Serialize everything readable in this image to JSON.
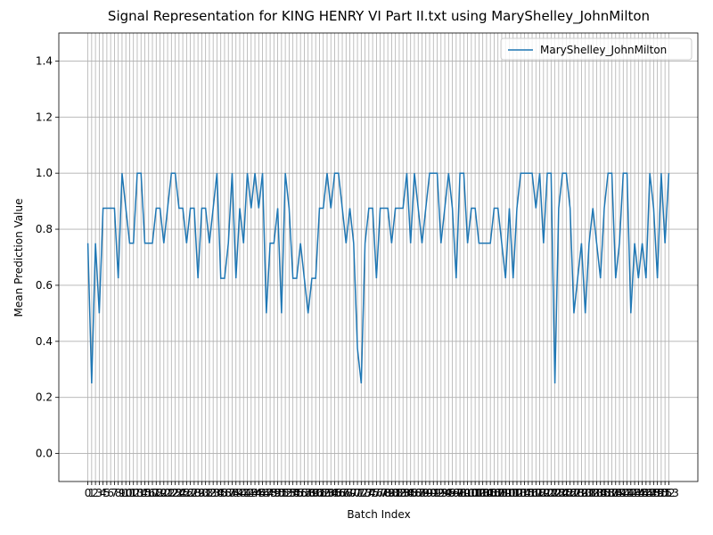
{
  "chart_data": {
    "type": "line",
    "title": "Signal Representation for KING HENRY VI Part II.txt using MaryShelley_JohnMilton",
    "xlabel": "Batch Index",
    "ylabel": "Mean Prediction Value",
    "x": [
      0,
      1,
      2,
      3,
      4,
      5,
      6,
      7,
      8,
      9,
      10,
      11,
      12,
      13,
      14,
      15,
      16,
      17,
      18,
      19,
      20,
      21,
      22,
      23,
      24,
      25,
      26,
      27,
      28,
      29,
      30,
      31,
      32,
      33,
      34,
      35,
      36,
      37,
      38,
      39,
      40,
      41,
      42,
      43,
      44,
      45,
      46,
      47,
      48,
      49,
      50,
      51,
      52,
      53,
      54,
      55,
      56,
      57,
      58,
      59,
      60,
      61,
      62,
      63,
      64,
      65,
      66,
      67,
      68,
      69,
      70,
      71,
      72,
      73,
      74,
      75,
      76,
      77,
      78,
      79,
      80,
      81,
      82,
      83,
      84,
      85,
      86,
      87,
      88,
      89,
      90,
      91,
      92,
      93,
      94,
      95,
      96,
      97,
      98,
      99,
      100,
      101,
      102,
      103,
      104,
      105,
      106,
      107,
      108,
      109,
      110,
      111,
      112,
      113,
      114,
      115,
      116,
      117,
      118,
      119,
      120,
      121,
      122,
      123,
      124,
      125,
      126,
      127,
      128,
      129,
      130,
      131,
      132,
      133,
      134,
      135,
      136,
      137,
      138,
      139,
      140,
      141,
      142,
      143,
      144,
      145,
      146,
      147,
      148,
      149,
      150,
      151,
      152,
      153
    ],
    "series": [
      {
        "name": "MaryShelley_JohnMilton",
        "color": "#1f77b4",
        "values": [
          0.75,
          0.25,
          0.75,
          0.5,
          0.875,
          0.875,
          0.875,
          0.875,
          0.625,
          1,
          0.875,
          0.75,
          0.75,
          1,
          1,
          0.75,
          0.75,
          0.75,
          0.875,
          0.875,
          0.75,
          0.875,
          1,
          1,
          0.875,
          0.875,
          0.75,
          0.875,
          0.875,
          0.625,
          0.875,
          0.875,
          0.75,
          0.875,
          1,
          0.625,
          0.625,
          0.75,
          1,
          0.625,
          0.875,
          0.75,
          1,
          0.875,
          1,
          0.875,
          1,
          0.5,
          0.75,
          0.75,
          0.875,
          0.5,
          1,
          0.875,
          0.625,
          0.625,
          0.75,
          0.625,
          0.5,
          0.625,
          0.625,
          0.875,
          0.875,
          1,
          0.875,
          1,
          1,
          0.875,
          0.75,
          0.875,
          0.75,
          0.375,
          0.25,
          0.75,
          0.875,
          0.875,
          0.625,
          0.875,
          0.875,
          0.875,
          0.75,
          0.875,
          0.875,
          0.875,
          1,
          0.75,
          1,
          0.875,
          0.75,
          0.875,
          1,
          1,
          1,
          0.75,
          0.875,
          1,
          0.875,
          0.625,
          1,
          1,
          0.75,
          0.875,
          0.875,
          0.75,
          0.75,
          0.75,
          0.75,
          0.875,
          0.875,
          0.75,
          0.625,
          0.875,
          0.625,
          0.875,
          1,
          1,
          1,
          1,
          0.875,
          1,
          0.75,
          1,
          1,
          0.25,
          0.875,
          1,
          1,
          0.875,
          0.5,
          0.625,
          0.75,
          0.5,
          0.75,
          0.875,
          0.75,
          0.625,
          0.875,
          1,
          1,
          0.625,
          0.75,
          1,
          1,
          0.5,
          0.75,
          0.625,
          0.75,
          0.625,
          1,
          0.875,
          0.625,
          1,
          0.75,
          1
        ]
      }
    ],
    "xlim": [
      -7.65,
      160.65
    ],
    "xticks": [
      0,
      1,
      2,
      3,
      4,
      5,
      6,
      7,
      8,
      9,
      10,
      11,
      12,
      13,
      14,
      15,
      16,
      17,
      18,
      19,
      20,
      21,
      22,
      23,
      24,
      25,
      26,
      27,
      28,
      29,
      30,
      31,
      32,
      33,
      34,
      35,
      36,
      37,
      38,
      39,
      40,
      41,
      42,
      43,
      44,
      45,
      46,
      47,
      48,
      49,
      50,
      51,
      52,
      53,
      54,
      55,
      56,
      57,
      58,
      59,
      60,
      61,
      62,
      63,
      64,
      65,
      66,
      67,
      68,
      69,
      70,
      71,
      72,
      73,
      74,
      75,
      76,
      77,
      78,
      79,
      80,
      81,
      82,
      83,
      84,
      85,
      86,
      87,
      88,
      89,
      90,
      91,
      92,
      93,
      94,
      95,
      96,
      97,
      98,
      99,
      100,
      101,
      102,
      103,
      104,
      105,
      106,
      107,
      108,
      109,
      110,
      111,
      112,
      113,
      114,
      115,
      116,
      117,
      118,
      119,
      120,
      121,
      122,
      123,
      124,
      125,
      126,
      127,
      128,
      129,
      130,
      131,
      132,
      133,
      134,
      135,
      136,
      137,
      138,
      139,
      140,
      141,
      142,
      143,
      144,
      145,
      146,
      147,
      148,
      149,
      150,
      151,
      152,
      153
    ],
    "ylim": [
      -0.1,
      1.5
    ],
    "yticks": [
      {
        "value": 0,
        "label": "0.0"
      },
      0.2,
      0.4,
      0.6,
      0.8,
      {
        "value": 1,
        "label": "1.0"
      },
      1.2,
      1.4
    ],
    "grid": true,
    "legend": "upper right"
  }
}
